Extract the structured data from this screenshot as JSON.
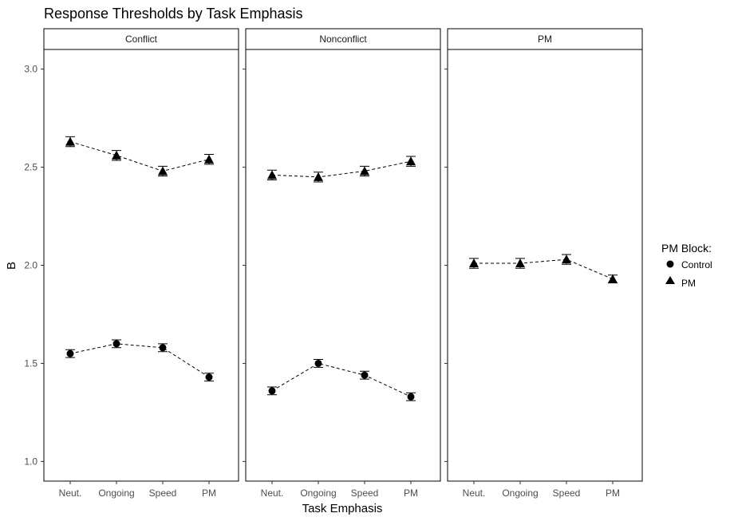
{
  "chart_data": {
    "type": "scatter",
    "title": "Response Thresholds by Task Emphasis",
    "xlabel": "Task Emphasis",
    "ylabel": "B",
    "ylim": [
      0.9,
      3.1
    ],
    "yticks": [
      "1.0",
      "1.5",
      "2.0",
      "2.5",
      "3.0"
    ],
    "ytick_values": [
      1.0,
      1.5,
      2.0,
      2.5,
      3.0
    ],
    "categories": [
      "Neut.",
      "Ongoing",
      "Speed",
      "PM"
    ],
    "grid": false,
    "legend": {
      "title": "PM Block:",
      "position": "right",
      "entries": [
        {
          "label": "Control",
          "shape": "circle"
        },
        {
          "label": "PM",
          "shape": "triangle"
        }
      ]
    },
    "panels": [
      {
        "label": "Conflict",
        "series": [
          {
            "name": "PM",
            "shape": "triangle",
            "values": [
              2.63,
              2.56,
              2.48,
              2.54
            ],
            "err": [
              0.025,
              0.025,
              0.025,
              0.025
            ]
          },
          {
            "name": "Control",
            "shape": "circle",
            "values": [
              1.55,
              1.6,
              1.58,
              1.43
            ],
            "err": [
              0.02,
              0.02,
              0.02,
              0.02
            ]
          }
        ]
      },
      {
        "label": "Nonconflict",
        "series": [
          {
            "name": "PM",
            "shape": "triangle",
            "values": [
              2.46,
              2.45,
              2.48,
              2.53
            ],
            "err": [
              0.025,
              0.025,
              0.025,
              0.025
            ]
          },
          {
            "name": "Control",
            "shape": "circle",
            "values": [
              1.36,
              1.5,
              1.44,
              1.33
            ],
            "err": [
              0.02,
              0.02,
              0.02,
              0.02
            ]
          }
        ]
      },
      {
        "label": "PM",
        "series": [
          {
            "name": "PM",
            "shape": "triangle",
            "values": [
              2.01,
              2.01,
              2.03,
              1.93
            ],
            "err": [
              0.025,
              0.025,
              0.025,
              0.02
            ]
          }
        ]
      }
    ],
    "colors": {
      "marker": "#000000",
      "line": "#000000",
      "strip_bg": "#ffffff",
      "panel_border": "#000000",
      "axis_text": "#4d4d4d"
    }
  }
}
